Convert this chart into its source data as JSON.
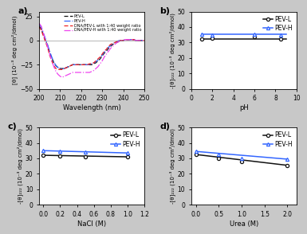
{
  "panel_a": {
    "wavelength": [
      200,
      201,
      202,
      203,
      204,
      205,
      206,
      207,
      208,
      209,
      210,
      211,
      212,
      213,
      214,
      215,
      216,
      217,
      218,
      219,
      220,
      221,
      222,
      223,
      224,
      225,
      226,
      227,
      228,
      229,
      230,
      231,
      232,
      233,
      234,
      235,
      236,
      237,
      238,
      239,
      240,
      241,
      242,
      243,
      244,
      245,
      246,
      247,
      248,
      249,
      250
    ],
    "PEV_L": [
      15,
      12,
      6,
      0,
      -5,
      -12,
      -18,
      -23,
      -26,
      -28,
      -29,
      -29,
      -29,
      -28,
      -27,
      -26,
      -25,
      -25,
      -25,
      -25,
      -25,
      -25,
      -25,
      -25,
      -25,
      -25,
      -24,
      -23,
      -21,
      -19,
      -16,
      -13,
      -11,
      -8,
      -6,
      -4,
      -3,
      -2,
      -1,
      0,
      0,
      1,
      1,
      1,
      1,
      1,
      0,
      0,
      0,
      0,
      0
    ],
    "PEV_H": [
      17,
      14,
      8,
      2,
      -4,
      -11,
      -17,
      -22,
      -26,
      -28,
      -29,
      -29,
      -29,
      -28,
      -27,
      -26,
      -25,
      -25,
      -25,
      -25,
      -25,
      -25,
      -25,
      -25,
      -25,
      -24,
      -23,
      -22,
      -20,
      -18,
      -15,
      -12,
      -10,
      -7,
      -5,
      -3,
      -2,
      -1,
      0,
      0,
      0,
      1,
      1,
      1,
      1,
      1,
      0,
      0,
      0,
      0,
      0
    ],
    "DNA_PEV_L": [
      14,
      11,
      5,
      -1,
      -7,
      -15,
      -21,
      -26,
      -29,
      -30,
      -30,
      -30,
      -29,
      -28,
      -27,
      -26,
      -25,
      -25,
      -25,
      -25,
      -25,
      -25,
      -25,
      -25,
      -24,
      -24,
      -23,
      -21,
      -19,
      -17,
      -14,
      -11,
      -9,
      -6,
      -4,
      -3,
      -2,
      -1,
      0,
      0,
      0,
      1,
      1,
      1,
      1,
      1,
      0,
      0,
      0,
      0,
      0
    ],
    "DNA_PEV_H": [
      18,
      15,
      8,
      1,
      -6,
      -14,
      -21,
      -27,
      -32,
      -35,
      -37,
      -38,
      -37,
      -36,
      -35,
      -34,
      -33,
      -33,
      -33,
      -33,
      -33,
      -33,
      -33,
      -33,
      -33,
      -32,
      -31,
      -29,
      -27,
      -24,
      -21,
      -17,
      -14,
      -11,
      -8,
      -6,
      -4,
      -2,
      -1,
      0,
      0,
      1,
      1,
      1,
      1,
      1,
      0,
      0,
      0,
      0,
      0
    ],
    "ylabel": "[θ] (10⁻³ deg cm²/dmol)",
    "xlabel": "Wavelength (nm)",
    "ylim": [
      -50,
      30
    ],
    "xlim": [
      200,
      250
    ],
    "yticks": [
      -50,
      -25,
      0,
      25
    ],
    "xticks": [
      200,
      210,
      220,
      230,
      240,
      250
    ],
    "label_panel": "a)"
  },
  "panel_b": {
    "pH_PEVL": [
      1,
      2,
      6,
      8.5
    ],
    "val_PEVL": [
      32,
      33,
      34,
      32
    ],
    "pH_PEVH": [
      1,
      2,
      6,
      8.5
    ],
    "val_PEVH": [
      35.5,
      35,
      35.5,
      35
    ],
    "line_PEVL": [
      1,
      9
    ],
    "line_val_PEVL": [
      32.5,
      32.5
    ],
    "line_PEVH": [
      1,
      9
    ],
    "line_val_PEVH": [
      35.2,
      35.2
    ],
    "ylabel": "-[θ]₂₂₂ (10⁻³ deg cm²/dmol)",
    "xlabel": "pH",
    "ylim": [
      0,
      50
    ],
    "xlim": [
      0,
      10
    ],
    "yticks": [
      0,
      10,
      20,
      30,
      40,
      50
    ],
    "xticks": [
      0,
      2,
      4,
      6,
      8,
      10
    ],
    "label_panel": "b)"
  },
  "panel_c": {
    "NaCl_PEVL": [
      0.0,
      0.2,
      0.5,
      1.0
    ],
    "val_PEVL": [
      32,
      31.5,
      31,
      31
    ],
    "NaCl_PEVH": [
      0.0,
      0.2,
      0.5,
      1.0
    ],
    "val_PEVH": [
      35,
      34.5,
      34,
      33.5
    ],
    "line_PEVL": [
      0.0,
      1.0
    ],
    "line_val_PEVL": [
      32,
      31
    ],
    "line_PEVH": [
      0.0,
      1.0
    ],
    "line_val_PEVH": [
      35,
      33.5
    ],
    "ylabel": "-[θ]₂₂₂ (10⁻³ deg cm²/dmol)",
    "xlabel": "NaCl (M)",
    "ylim": [
      0,
      50
    ],
    "xlim": [
      -0.05,
      1.2
    ],
    "yticks": [
      0,
      10,
      20,
      30,
      40,
      50
    ],
    "xticks": [
      0.0,
      0.2,
      0.4,
      0.6,
      0.8,
      1.0,
      1.2
    ],
    "label_panel": "c)"
  },
  "panel_d": {
    "urea_PEVL": [
      0.0,
      0.5,
      1.0,
      2.0
    ],
    "val_PEVL": [
      32.5,
      30,
      28,
      25.5
    ],
    "urea_PEVH": [
      0.0,
      0.5,
      1.0,
      2.0
    ],
    "val_PEVH": [
      34.5,
      32.5,
      30,
      29.5
    ],
    "line_PEVL": [
      0.0,
      2.0
    ],
    "line_val_PEVL": [
      32.5,
      25.5
    ],
    "line_PEVH": [
      0.0,
      2.0
    ],
    "line_val_PEVH": [
      34.5,
      29.5
    ],
    "ylabel": "-[θ]₂₂₂ (10⁻³ deg cm²/dmol)",
    "xlabel": "Urea (M)",
    "ylim": [
      0,
      50
    ],
    "xlim": [
      -0.1,
      2.2
    ],
    "yticks": [
      0,
      10,
      20,
      30,
      40,
      50
    ],
    "xticks": [
      0.0,
      0.5,
      1.0,
      1.5,
      2.0
    ],
    "label_panel": "d)"
  },
  "colors": {
    "black": "#111111",
    "blue": "#3366ff",
    "red": "#ee2222",
    "magenta": "#ee44ee"
  },
  "bg_color": "#c8c8c8",
  "plot_bg": "#ffffff"
}
